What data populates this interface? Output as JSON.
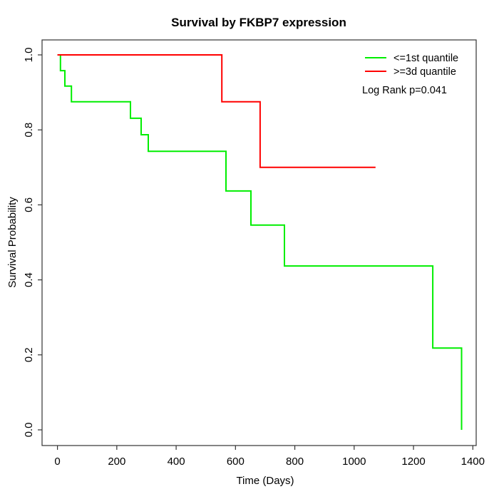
{
  "title": "Survival by FKBP7 expression",
  "chart_data": {
    "type": "line",
    "subtype": "kaplan-meier-step",
    "title": "Survival by FKBP7 expression",
    "xlabel": "Time (Days)",
    "ylabel": "Survival Probability",
    "xlim": [
      0,
      1400
    ],
    "ylim": [
      0.0,
      1.0
    ],
    "grid": false,
    "legend_position": "top-right",
    "x_ticks": [
      0,
      200,
      400,
      600,
      800,
      1000,
      1200,
      1400
    ],
    "x_tick_labels": [
      "0",
      "200",
      "400",
      "600",
      "800",
      "1000",
      "1200",
      "1400"
    ],
    "y_ticks": [
      0.0,
      0.2,
      0.4,
      0.6,
      0.8,
      1.0
    ],
    "y_tick_labels": [
      "0.0",
      "0.2",
      "0.4",
      "0.6",
      "0.8",
      "1.0"
    ],
    "series": [
      {
        "name": "<=1st quantile",
        "color": "#00ee00",
        "points": [
          [
            0,
            1.0
          ],
          [
            10,
            0.958
          ],
          [
            25,
            0.917
          ],
          [
            47,
            0.875
          ],
          [
            246,
            0.831
          ],
          [
            282,
            0.787
          ],
          [
            306,
            0.743
          ],
          [
            568,
            0.637
          ],
          [
            652,
            0.546
          ],
          [
            765,
            0.437
          ],
          [
            1265,
            0.218
          ],
          [
            1362,
            0.0
          ]
        ],
        "end_time": 1362
      },
      {
        "name": ">=3d quantile",
        "color": "#ff0000",
        "points": [
          [
            0,
            1.0
          ],
          [
            554,
            0.875
          ],
          [
            683,
            0.7
          ]
        ],
        "end_time": 1072
      }
    ],
    "annotation": "Log Rank p=0.041"
  },
  "legend": {
    "items": [
      {
        "label": "<=1st quantile",
        "color": "#00ee00"
      },
      {
        "label": ">=3d quantile",
        "color": "#ff0000"
      }
    ],
    "annotation": "Log Rank p=0.041"
  }
}
